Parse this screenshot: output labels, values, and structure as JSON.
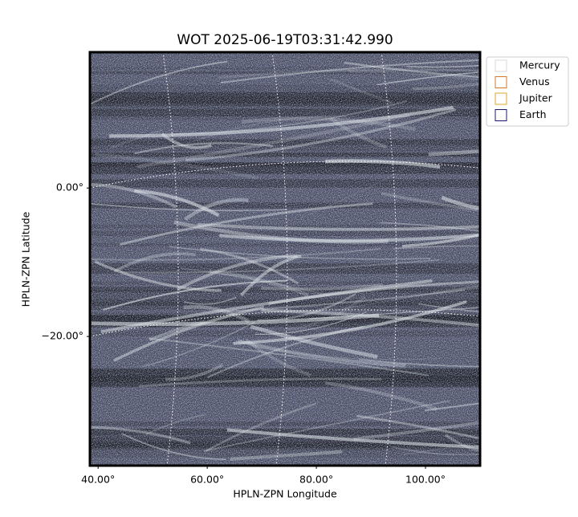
{
  "chart_data": {
    "type": "image",
    "title": "WOT 2025-06-19T03:31:42.990",
    "xlabel": "HPLN-ZPN Longitude",
    "ylabel": "HPLN-ZPN Latitude",
    "xlim": [
      38.5,
      110
    ],
    "ylim": [
      -37.4,
      18.3
    ],
    "xticks": [
      {
        "value": 40,
        "label": "40.00°"
      },
      {
        "value": 60,
        "label": "60.00°"
      },
      {
        "value": 80,
        "label": "80.00°"
      },
      {
        "value": 100,
        "label": "100.00°"
      }
    ],
    "yticks": [
      {
        "value": 0,
        "label": "0.00°"
      },
      {
        "value": -20,
        "label": "−20.00°"
      }
    ],
    "grid": true,
    "legend_loc": "outside upper right",
    "legend": [
      {
        "name": "Mercury",
        "color": "#d9d9d9"
      },
      {
        "name": "Venus",
        "color": "#d2782f"
      },
      {
        "name": "Jupiter",
        "color": "#e2a72a"
      },
      {
        "name": "Earth",
        "color": "#17176e"
      }
    ]
  }
}
